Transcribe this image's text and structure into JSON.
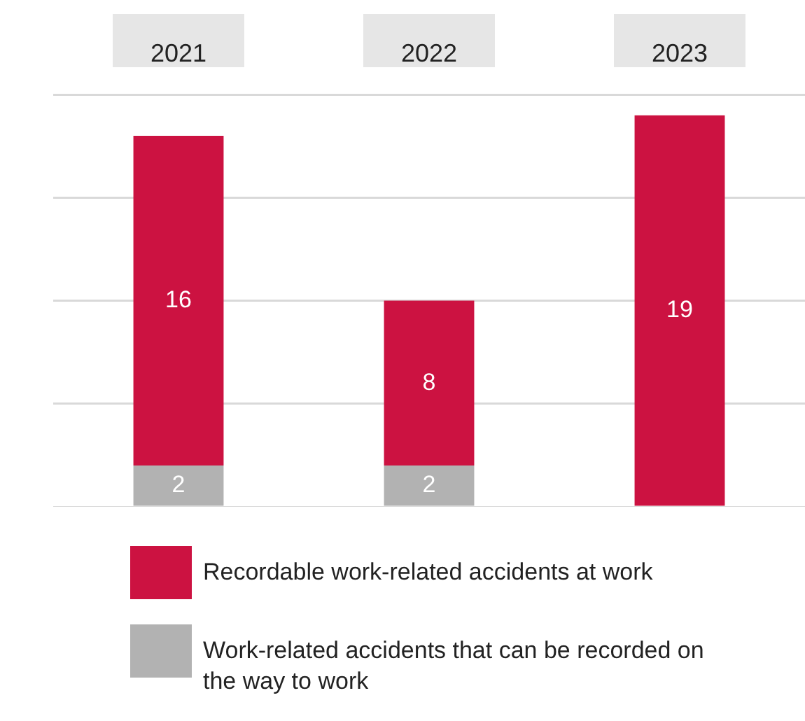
{
  "chart_data": {
    "type": "bar",
    "stacked": true,
    "categories": [
      "2021",
      "2022",
      "2023"
    ],
    "series": [
      {
        "name": "Work-related accidents that can be recorded on the way to work",
        "color": "#b2b2b2",
        "values": [
          2,
          2,
          null
        ]
      },
      {
        "name": "Recordable work-related accidents at work",
        "color": "#cc1241",
        "values": [
          16,
          8,
          19
        ]
      }
    ],
    "ylim": [
      0,
      20
    ],
    "yticks": [
      {
        "value": 0,
        "label": null
      },
      {
        "value": 5,
        "label": null
      },
      {
        "value": 10,
        "label": null
      },
      {
        "value": 15,
        "label": null
      },
      {
        "value": 20,
        "label": null
      }
    ],
    "grid": "y",
    "tick_labels": "x",
    "legend": "bottom",
    "data_labels": true
  }
}
